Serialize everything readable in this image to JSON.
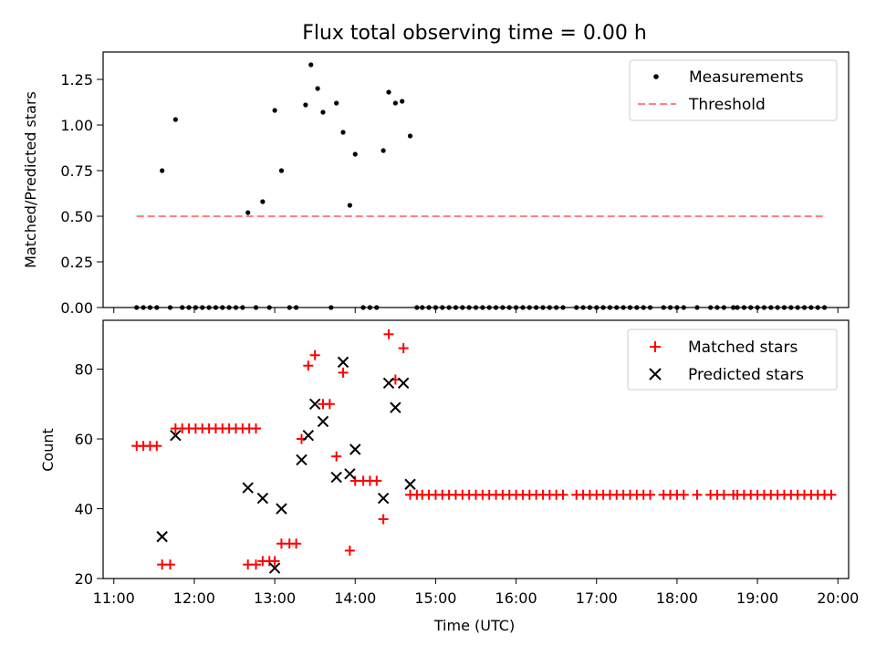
{
  "title": "Flux total observing time = 0.00 h",
  "xlabel": "Time (UTC)",
  "colors": {
    "measurement": "#000000",
    "threshold": "#ff8080",
    "matched": "#ff0000",
    "predicted": "#000000",
    "axes": "#000000",
    "background": "#ffffff"
  },
  "chart_data": [
    {
      "type": "scatter",
      "panel": "top",
      "ylabel": "Matched/Predicted stars",
      "xlim": [
        "11:00",
        "20:00"
      ],
      "ylim": [
        0,
        1.4
      ],
      "yticks": [
        0,
        0.25,
        0.5,
        0.75,
        1.0,
        1.25
      ],
      "ytick_labels": [
        "0.00",
        "0.25",
        "0.50",
        "0.75",
        "1.00",
        "1.25"
      ],
      "legend_position": "upper right",
      "series": [
        {
          "name": "Measurements",
          "marker": "dot",
          "points": [
            [
              "11:17",
              0
            ],
            [
              "11:22",
              0
            ],
            [
              "11:27",
              0
            ],
            [
              "11:32",
              0
            ],
            [
              "11:36",
              0.75
            ],
            [
              "11:42",
              0
            ],
            [
              "11:46",
              1.03
            ],
            [
              "11:51",
              0
            ],
            [
              "11:56",
              0
            ],
            [
              "12:01",
              0
            ],
            [
              "12:06",
              0
            ],
            [
              "12:11",
              0
            ],
            [
              "12:16",
              0
            ],
            [
              "12:21",
              0
            ],
            [
              "12:26",
              0
            ],
            [
              "12:31",
              0
            ],
            [
              "12:36",
              0
            ],
            [
              "12:40",
              0.52
            ],
            [
              "12:46",
              0
            ],
            [
              "12:51",
              0.58
            ],
            [
              "12:56",
              0
            ],
            [
              "13:00",
              1.08
            ],
            [
              "13:05",
              0.75
            ],
            [
              "13:11",
              0
            ],
            [
              "13:16",
              0
            ],
            [
              "13:23",
              1.11
            ],
            [
              "13:27",
              1.33
            ],
            [
              "13:32",
              1.2
            ],
            [
              "13:36",
              1.07
            ],
            [
              "13:42",
              0
            ],
            [
              "13:46",
              1.12
            ],
            [
              "13:51",
              0.96
            ],
            [
              "13:56",
              0.56
            ],
            [
              "14:00",
              0.84
            ],
            [
              "14:06",
              0
            ],
            [
              "14:11",
              0
            ],
            [
              "14:16",
              0
            ],
            [
              "14:21",
              0.86
            ],
            [
              "14:25",
              1.18
            ],
            [
              "14:30",
              1.12
            ],
            [
              "14:35",
              1.13
            ],
            [
              "14:41",
              0.94
            ],
            [
              "14:46",
              0
            ],
            [
              "14:50",
              0
            ],
            [
              "14:55",
              0
            ],
            [
              "15:00",
              0
            ],
            [
              "15:05",
              0
            ],
            [
              "15:10",
              0
            ],
            [
              "15:15",
              0
            ],
            [
              "15:20",
              0
            ],
            [
              "15:25",
              0
            ],
            [
              "15:30",
              0
            ],
            [
              "15:35",
              0
            ],
            [
              "15:40",
              0
            ],
            [
              "15:45",
              0
            ],
            [
              "15:50",
              0
            ],
            [
              "15:55",
              0
            ],
            [
              "16:00",
              0
            ],
            [
              "16:05",
              0
            ],
            [
              "16:10",
              0
            ],
            [
              "16:15",
              0
            ],
            [
              "16:20",
              0
            ],
            [
              "16:25",
              0
            ],
            [
              "16:30",
              0
            ],
            [
              "16:35",
              0
            ],
            [
              "16:45",
              0
            ],
            [
              "16:50",
              0
            ],
            [
              "16:55",
              0
            ],
            [
              "17:00",
              0
            ],
            [
              "17:05",
              0
            ],
            [
              "17:10",
              0
            ],
            [
              "17:15",
              0
            ],
            [
              "17:20",
              0
            ],
            [
              "17:25",
              0
            ],
            [
              "17:30",
              0
            ],
            [
              "17:35",
              0
            ],
            [
              "17:40",
              0
            ],
            [
              "17:50",
              0
            ],
            [
              "17:55",
              0
            ],
            [
              "18:00",
              0
            ],
            [
              "18:05",
              0
            ],
            [
              "18:15",
              0
            ],
            [
              "18:25",
              0
            ],
            [
              "18:30",
              0
            ],
            [
              "18:35",
              0
            ],
            [
              "18:42",
              0
            ],
            [
              "18:45",
              0
            ],
            [
              "18:50",
              0
            ],
            [
              "18:55",
              0
            ],
            [
              "19:00",
              0
            ],
            [
              "19:05",
              0
            ],
            [
              "19:10",
              0
            ],
            [
              "19:15",
              0
            ],
            [
              "19:20",
              0
            ],
            [
              "19:25",
              0
            ],
            [
              "19:30",
              0
            ],
            [
              "19:35",
              0
            ],
            [
              "19:40",
              0
            ],
            [
              "19:45",
              0
            ],
            [
              "19:50",
              0
            ]
          ]
        },
        {
          "name": "Threshold",
          "line_style": "dashed",
          "points": [
            [
              "11:17",
              0.5
            ],
            [
              "19:50",
              0.5
            ]
          ]
        }
      ]
    },
    {
      "type": "scatter",
      "panel": "bottom",
      "ylabel": "Count",
      "xlim": [
        "11:00",
        "20:00"
      ],
      "ylim": [
        20,
        94
      ],
      "yticks": [
        20,
        40,
        60,
        80
      ],
      "xticks": [
        "11:00",
        "12:00",
        "13:00",
        "14:00",
        "15:00",
        "16:00",
        "17:00",
        "18:00",
        "19:00",
        "20:00"
      ],
      "legend_position": "upper right",
      "series": [
        {
          "name": "Matched stars",
          "marker": "plus",
          "points": [
            [
              "11:17",
              58
            ],
            [
              "11:22",
              58
            ],
            [
              "11:27",
              58
            ],
            [
              "11:32",
              58
            ],
            [
              "11:36",
              24
            ],
            [
              "11:42",
              24
            ],
            [
              "11:46",
              63
            ],
            [
              "11:51",
              63
            ],
            [
              "11:56",
              63
            ],
            [
              "12:01",
              63
            ],
            [
              "12:06",
              63
            ],
            [
              "12:11",
              63
            ],
            [
              "12:16",
              63
            ],
            [
              "12:21",
              63
            ],
            [
              "12:26",
              63
            ],
            [
              "12:31",
              63
            ],
            [
              "12:36",
              63
            ],
            [
              "12:41",
              63
            ],
            [
              "12:46",
              63
            ],
            [
              "12:40",
              24
            ],
            [
              "12:46",
              24
            ],
            [
              "12:51",
              25
            ],
            [
              "12:56",
              25
            ],
            [
              "13:00",
              25
            ],
            [
              "13:05",
              30
            ],
            [
              "13:11",
              30
            ],
            [
              "13:16",
              30
            ],
            [
              "13:20",
              60
            ],
            [
              "13:25",
              81
            ],
            [
              "13:30",
              84
            ],
            [
              "13:36",
              70
            ],
            [
              "13:41",
              70
            ],
            [
              "13:46",
              55
            ],
            [
              "13:51",
              79
            ],
            [
              "13:56",
              28
            ],
            [
              "14:00",
              48
            ],
            [
              "14:06",
              48
            ],
            [
              "14:11",
              48
            ],
            [
              "14:16",
              48
            ],
            [
              "14:21",
              37
            ],
            [
              "14:25",
              90
            ],
            [
              "14:30",
              77
            ],
            [
              "14:36",
              86
            ],
            [
              "14:41",
              44
            ],
            [
              "14:46",
              44
            ],
            [
              "14:50",
              44
            ],
            [
              "14:55",
              44
            ],
            [
              "15:00",
              44
            ],
            [
              "15:05",
              44
            ],
            [
              "15:10",
              44
            ],
            [
              "15:15",
              44
            ],
            [
              "15:20",
              44
            ],
            [
              "15:25",
              44
            ],
            [
              "15:30",
              44
            ],
            [
              "15:35",
              44
            ],
            [
              "15:40",
              44
            ],
            [
              "15:45",
              44
            ],
            [
              "15:50",
              44
            ],
            [
              "15:55",
              44
            ],
            [
              "16:00",
              44
            ],
            [
              "16:05",
              44
            ],
            [
              "16:10",
              44
            ],
            [
              "16:15",
              44
            ],
            [
              "16:20",
              44
            ],
            [
              "16:25",
              44
            ],
            [
              "16:30",
              44
            ],
            [
              "16:35",
              44
            ],
            [
              "16:45",
              44
            ],
            [
              "16:50",
              44
            ],
            [
              "16:55",
              44
            ],
            [
              "17:00",
              44
            ],
            [
              "17:05",
              44
            ],
            [
              "17:10",
              44
            ],
            [
              "17:15",
              44
            ],
            [
              "17:20",
              44
            ],
            [
              "17:25",
              44
            ],
            [
              "17:30",
              44
            ],
            [
              "17:35",
              44
            ],
            [
              "17:40",
              44
            ],
            [
              "17:50",
              44
            ],
            [
              "17:55",
              44
            ],
            [
              "18:00",
              44
            ],
            [
              "18:05",
              44
            ],
            [
              "18:15",
              44
            ],
            [
              "18:25",
              44
            ],
            [
              "18:30",
              44
            ],
            [
              "18:35",
              44
            ],
            [
              "18:42",
              44
            ],
            [
              "18:45",
              44
            ],
            [
              "18:50",
              44
            ],
            [
              "18:55",
              44
            ],
            [
              "19:00",
              44
            ],
            [
              "19:05",
              44
            ],
            [
              "19:10",
              44
            ],
            [
              "19:15",
              44
            ],
            [
              "19:20",
              44
            ],
            [
              "19:25",
              44
            ],
            [
              "19:30",
              44
            ],
            [
              "19:35",
              44
            ],
            [
              "19:40",
              44
            ],
            [
              "19:45",
              44
            ],
            [
              "19:50",
              44
            ],
            [
              "19:55",
              44
            ]
          ]
        },
        {
          "name": "Predicted stars",
          "marker": "x",
          "points": [
            [
              "11:36",
              32
            ],
            [
              "11:46",
              61
            ],
            [
              "12:40",
              46
            ],
            [
              "12:51",
              43
            ],
            [
              "13:00",
              23
            ],
            [
              "13:05",
              40
            ],
            [
              "13:20",
              54
            ],
            [
              "13:25",
              61
            ],
            [
              "13:30",
              70
            ],
            [
              "13:36",
              65
            ],
            [
              "13:46",
              49
            ],
            [
              "13:51",
              82
            ],
            [
              "13:56",
              50
            ],
            [
              "14:00",
              57
            ],
            [
              "14:21",
              43
            ],
            [
              "14:25",
              76
            ],
            [
              "14:30",
              69
            ],
            [
              "14:36",
              76
            ],
            [
              "14:41",
              47
            ]
          ]
        }
      ]
    }
  ]
}
